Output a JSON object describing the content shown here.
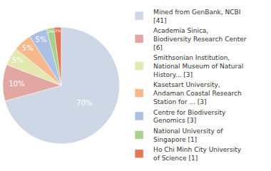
{
  "chart_data": {
    "type": "pie",
    "categories": [
      "Mined from GenBank, NCBI [41]",
      "Academia Sinica, Biodiversity Research Center [6]",
      "Smithsonian Institution, National Museum of Natural History... [3]",
      "Kasetsart University, Andaman Coastal Research Station for ... [3]",
      "Centre for Biodiversity Genomics [3]",
      "National University of Singapore [1]",
      "Ho Chi Minh City University of Science [1]"
    ],
    "values": [
      70,
      10,
      5,
      5,
      5,
      2,
      2
    ],
    "value_labels": [
      "70%",
      "10%",
      "5%",
      "5%",
      "5%",
      "2%",
      "2%"
    ],
    "data_labels": true,
    "colors": [
      "#cdd7e5",
      "#e2a7a3",
      "#e2e8b0",
      "#f5b98c",
      "#abc0e2",
      "#a9d08f",
      "#e0795a"
    ],
    "legend": "right"
  }
}
